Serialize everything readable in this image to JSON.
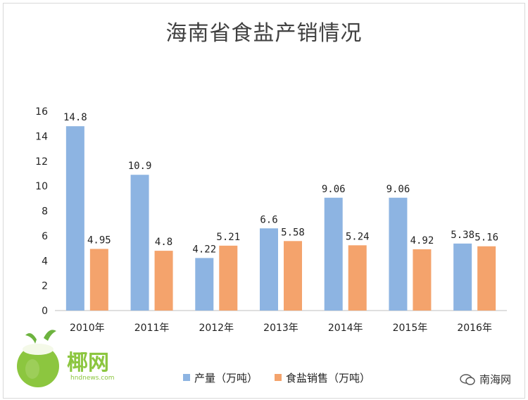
{
  "chart_data": {
    "type": "bar",
    "title": "海南省食盐产销情况",
    "categories": [
      "2010年",
      "2011年",
      "2012年",
      "2013年",
      "2014年",
      "2015年",
      "2016年"
    ],
    "series": [
      {
        "name": "产量（万吨）",
        "color": "#8db4e2",
        "values": [
          14.8,
          10.9,
          4.22,
          6.6,
          9.06,
          9.06,
          5.38
        ],
        "labels": [
          "14.8",
          "10.9",
          "4.22",
          "6.6",
          "9.06",
          "9.06",
          "5.38"
        ]
      },
      {
        "name": "食盐销售（万吨）",
        "color": "#f4a36c",
        "values": [
          4.95,
          4.8,
          5.21,
          5.58,
          5.24,
          4.92,
          5.16
        ],
        "labels": [
          "4.95",
          "4.8",
          "5.21",
          "5.58",
          "5.24",
          "4.92",
          "5.16"
        ]
      }
    ],
    "ylim": [
      0,
      16
    ],
    "yticks": [
      0,
      2,
      4,
      6,
      8,
      10,
      12,
      14,
      16
    ],
    "legend": "bottom",
    "grid": false
  },
  "logo": {
    "text": "椰网",
    "url": "hndnews.com"
  },
  "watermark": {
    "text": "南海网",
    "icon": "wechat-icon"
  }
}
